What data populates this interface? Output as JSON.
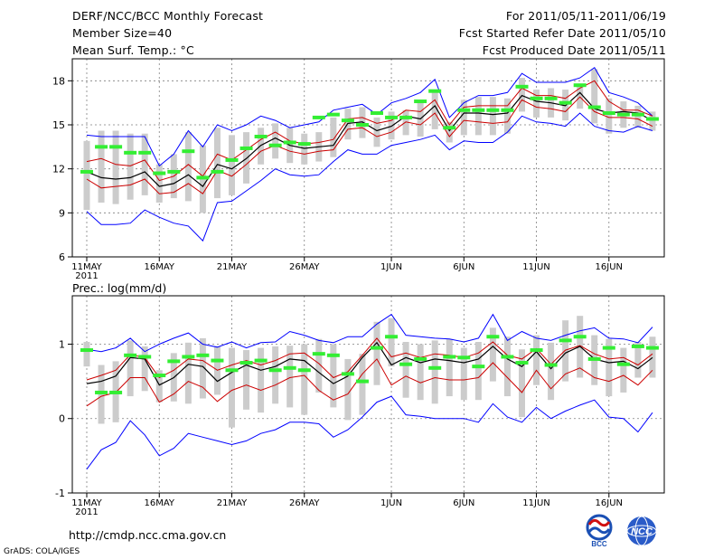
{
  "header": {
    "title": "DERF/NCC/BCC Monthly Forecast",
    "member_size": "Member Size=40",
    "variable": "Mean Surf. Temp.: °C",
    "period": "For 2011/05/11-2011/06/19",
    "start_date": "Fcst Started Refer Date 2011/05/10",
    "produced_date": "Fcst Produced Date 2011/05/11"
  },
  "precip_label": "Prec.: log(mm/d)",
  "footer": {
    "url": "http://cmdp.ncc.cma.gov.cn",
    "credit": "GrADS: COLA/IGES"
  },
  "logos": {
    "bcc": "BCC",
    "ncc": "NCC"
  },
  "colors": {
    "envelope": "#0000ff",
    "spread": "#cc0000",
    "mean": "#000000",
    "bar": "#cccccc",
    "median": "#33ee33",
    "grid": "#7f7f7f"
  },
  "chart_data": [
    {
      "type": "line",
      "title": "Mean Surf. Temp.: °C",
      "unit": "°C",
      "x_tick_labels": [
        "11MAY",
        "16MAY",
        "21MAY",
        "26MAY",
        "1JUN",
        "6JUN",
        "11JUN",
        "16JUN"
      ],
      "x_year_label": "2011",
      "x_tick_days": [
        0,
        5,
        10,
        15,
        21,
        26,
        31,
        36
      ],
      "ylim": [
        6,
        19.5
      ],
      "yticks": [
        6,
        9,
        12,
        15,
        18
      ],
      "grid": true,
      "series": [
        {
          "name": "max",
          "values": [
            14.3,
            14.2,
            14.2,
            14.2,
            14.2,
            12.2,
            13,
            14.6,
            13.5,
            15,
            14.6,
            15,
            15.6,
            15.3,
            14.8,
            15,
            15.2,
            16,
            16.2,
            16.4,
            15.7,
            16.5,
            16.8,
            17.2,
            18.1,
            15.5,
            16.5,
            17,
            17,
            17.2,
            18.5,
            17.9,
            17.9,
            17.9,
            18.2,
            18.9,
            17.2,
            16.9,
            16.5,
            15.6
          ]
        },
        {
          "name": "upper",
          "values": [
            12.5,
            12.7,
            12.3,
            12.2,
            12.6,
            11.2,
            11.5,
            12.3,
            11.5,
            13,
            12.6,
            13.3,
            14,
            14.5,
            13.9,
            13.7,
            13.8,
            14,
            15.4,
            15.5,
            15.1,
            15.3,
            16,
            15.9,
            16.7,
            15,
            16.2,
            16.3,
            16.3,
            16.3,
            17.5,
            17,
            17,
            16.8,
            17.5,
            18,
            16.6,
            16,
            16,
            15.6
          ]
        },
        {
          "name": "mean",
          "values": [
            11.8,
            11.4,
            11.3,
            11.4,
            11.8,
            10.8,
            11,
            11.6,
            10.8,
            12.3,
            12,
            12.7,
            13.6,
            14.1,
            13.6,
            13.4,
            13.5,
            13.6,
            15.1,
            15.2,
            14.6,
            14.9,
            15.6,
            15.4,
            16.3,
            14.6,
            15.8,
            15.8,
            15.7,
            15.8,
            17,
            16.6,
            16.5,
            16.3,
            17.2,
            16.1,
            15.8,
            15.9,
            15.8,
            15.3
          ]
        },
        {
          "name": "lower",
          "values": [
            11.3,
            10.7,
            10.8,
            10.9,
            11.3,
            10.3,
            10.4,
            11,
            10.3,
            11.9,
            11.5,
            12.3,
            13.2,
            13.6,
            13.2,
            13,
            13.2,
            13.3,
            14.7,
            14.8,
            14.2,
            14.5,
            15.2,
            15,
            15.8,
            14.2,
            15.3,
            15.2,
            15.1,
            15.2,
            16.7,
            16.2,
            16.1,
            15.9,
            16.9,
            15.9,
            15.5,
            15.5,
            15.4,
            14.9
          ]
        },
        {
          "name": "min",
          "values": [
            9.1,
            8.2,
            8.2,
            8.3,
            9.2,
            8.7,
            8.3,
            8.1,
            7.1,
            9.7,
            9.8,
            10.5,
            11.2,
            12,
            11.6,
            11.5,
            11.6,
            12.5,
            13.3,
            13,
            13,
            13.6,
            13.8,
            14,
            14.3,
            13.3,
            13.9,
            13.8,
            13.8,
            14.5,
            15.6,
            15.2,
            15.1,
            14.9,
            15.8,
            14.9,
            14.6,
            14.5,
            14.9,
            14.6
          ]
        },
        {
          "name": "median",
          "values": [
            11.8,
            13.5,
            13.5,
            13.1,
            13.1,
            11.7,
            11.8,
            13.2,
            11.4,
            11.8,
            12.6,
            13.4,
            14.2,
            13.6,
            13.8,
            13.7,
            15.5,
            15.7,
            15.3,
            15,
            15.8,
            15.5,
            15.5,
            16.6,
            17.3,
            14.8,
            16,
            16,
            16,
            16,
            17.6,
            16.8,
            16.8,
            16.5,
            17.7,
            16.2,
            15.8,
            15.7,
            15.7,
            15.4
          ]
        },
        {
          "name": "bar_top",
          "values": [
            13.9,
            14.6,
            14.6,
            14.4,
            14.4,
            12.3,
            13,
            14.5,
            13.6,
            14.8,
            14.3,
            14.5,
            14.8,
            15.1,
            14.8,
            14.4,
            14.5,
            15.5,
            16.1,
            16.2,
            15.5,
            15.9,
            16,
            16.5,
            17.3,
            15.2,
            16.7,
            16.9,
            16.9,
            16.8,
            18.2,
            17.4,
            17.5,
            17.4,
            17.6,
            18.8,
            16.8,
            16.6,
            16.3,
            15.9
          ]
        },
        {
          "name": "bar_bottom",
          "values": [
            9.2,
            9.7,
            9.6,
            9.9,
            10.2,
            9.7,
            10,
            9.8,
            9,
            10,
            10.2,
            11,
            12.3,
            12.7,
            12.4,
            12.3,
            12.5,
            12.8,
            14,
            14.1,
            13.5,
            14,
            14.3,
            14.2,
            14.7,
            13.8,
            14.3,
            14.3,
            14.3,
            14.4,
            15.9,
            15.5,
            15.5,
            15.3,
            16.1,
            15.1,
            14.4,
            14.8,
            14.8,
            14.6
          ]
        }
      ]
    },
    {
      "type": "line",
      "title": "Prec.: log(mm/d)",
      "unit": "log(mm/d)",
      "x_tick_labels": [
        "11MAY",
        "16MAY",
        "21MAY",
        "26MAY",
        "1JUN",
        "6JUN",
        "11JUN",
        "16JUN"
      ],
      "x_year_label": "2011",
      "x_tick_days": [
        0,
        5,
        10,
        15,
        21,
        26,
        31,
        36
      ],
      "ylim": [
        -1,
        1.65
      ],
      "yticks": [
        -1,
        0,
        1
      ],
      "grid": true,
      "series": [
        {
          "name": "max",
          "values": [
            0.93,
            0.9,
            0.95,
            1.08,
            0.9,
            1,
            1.08,
            1.15,
            1,
            0.96,
            1.03,
            0.95,
            1.02,
            1.03,
            1.17,
            1.12,
            1.05,
            1.02,
            1.1,
            1.1,
            1.27,
            1.4,
            1.12,
            1.1,
            1.08,
            1.07,
            1.03,
            1.08,
            1.4,
            1.05,
            1.17,
            1.08,
            1.05,
            1.12,
            1.18,
            1.22,
            1.08,
            1.07,
            1.02,
            1.23
          ]
        },
        {
          "name": "upper",
          "values": [
            0.52,
            0.58,
            0.65,
            0.86,
            0.82,
            0.55,
            0.65,
            0.8,
            0.78,
            0.65,
            0.72,
            0.78,
            0.72,
            0.78,
            0.87,
            0.88,
            0.74,
            0.55,
            0.63,
            0.85,
            1.08,
            0.83,
            0.88,
            0.82,
            0.87,
            0.85,
            0.82,
            0.88,
            1.03,
            0.85,
            0.8,
            0.94,
            0.73,
            0.92,
            0.98,
            0.87,
            0.8,
            0.82,
            0.72,
            0.87
          ]
        },
        {
          "name": "mean",
          "values": [
            0.47,
            0.5,
            0.57,
            0.82,
            0.8,
            0.45,
            0.55,
            0.73,
            0.7,
            0.5,
            0.62,
            0.72,
            0.65,
            0.7,
            0.8,
            0.78,
            0.62,
            0.47,
            0.57,
            0.82,
            1.02,
            0.72,
            0.82,
            0.75,
            0.8,
            0.78,
            0.75,
            0.8,
            0.97,
            0.8,
            0.7,
            0.9,
            0.67,
            0.88,
            0.97,
            0.8,
            0.75,
            0.77,
            0.67,
            0.82
          ]
        },
        {
          "name": "lower",
          "values": [
            0.17,
            0.3,
            0.35,
            0.55,
            0.55,
            0.22,
            0.33,
            0.5,
            0.42,
            0.23,
            0.38,
            0.45,
            0.38,
            0.45,
            0.55,
            0.58,
            0.38,
            0.25,
            0.33,
            0.6,
            0.8,
            0.45,
            0.57,
            0.48,
            0.55,
            0.52,
            0.52,
            0.55,
            0.75,
            0.55,
            0.35,
            0.65,
            0.4,
            0.6,
            0.68,
            0.55,
            0.5,
            0.58,
            0.45,
            0.65
          ]
        },
        {
          "name": "min",
          "values": [
            -0.68,
            -0.42,
            -0.32,
            -0.03,
            -0.22,
            -0.5,
            -0.4,
            -0.2,
            -0.25,
            -0.3,
            -0.35,
            -0.3,
            -0.2,
            -0.15,
            -0.05,
            -0.05,
            -0.07,
            -0.25,
            -0.15,
            0.02,
            0.22,
            0.3,
            0.05,
            0.03,
            0,
            0,
            0,
            -0.05,
            0.2,
            0.02,
            -0.05,
            0.15,
            0,
            0.1,
            0.18,
            0.25,
            0.02,
            0,
            -0.18,
            0.08
          ]
        },
        {
          "name": "median",
          "values": [
            0.92,
            0.35,
            0.35,
            0.85,
            0.83,
            0.58,
            0.77,
            0.83,
            0.85,
            0.78,
            0.65,
            0.75,
            0.78,
            0.65,
            0.68,
            0.65,
            0.87,
            0.85,
            0.6,
            0.5,
            0.95,
            1.1,
            0.73,
            0.8,
            0.68,
            0.83,
            0.82,
            0.7,
            1.1,
            0.83,
            0.75,
            0.92,
            0.72,
            1.05,
            1.1,
            0.8,
            0.95,
            0.73,
            0.97,
            0.95
          ]
        },
        {
          "name": "bar_top",
          "values": [
            1.03,
            0.72,
            0.77,
            1.05,
            0.97,
            0.65,
            0.88,
            1.02,
            1.08,
            0.97,
            0.95,
            0.92,
            0.95,
            0.97,
            0.98,
            1,
            1.07,
            1,
            0.8,
            0.87,
            1.3,
            1.35,
            1.03,
            1,
            1.05,
            1.07,
            0.95,
            1.03,
            1.22,
            1.1,
            0.93,
            1.12,
            1.02,
            1.32,
            1.38,
            1.12,
            1.07,
            0.95,
            1.03,
            1.1
          ]
        },
        {
          "name": "bar_bottom",
          "values": [
            0.7,
            -0.07,
            -0.05,
            0.3,
            0.37,
            0.22,
            0.23,
            0.2,
            0.27,
            0.32,
            -0.12,
            0.12,
            0.08,
            0.2,
            0.15,
            0.05,
            0.35,
            0.15,
            -0.02,
            0.05,
            0.45,
            0.7,
            0.28,
            0.25,
            0.2,
            0.3,
            0.25,
            0.25,
            0.5,
            0.3,
            0.02,
            0.45,
            0.25,
            0.5,
            0.55,
            0.45,
            0.3,
            0.35,
            0.55,
            0.55
          ]
        }
      ]
    }
  ]
}
